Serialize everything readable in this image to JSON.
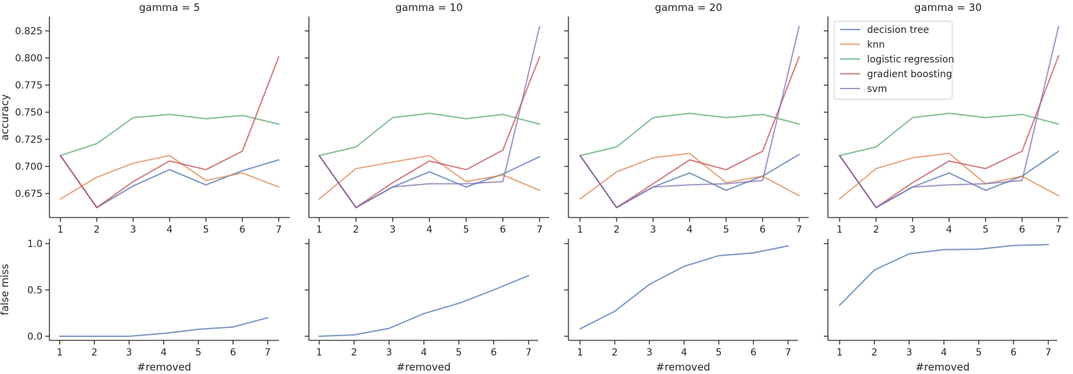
{
  "chart_data": {
    "type": "line",
    "layout": "facet-grid",
    "x": [
      1,
      2,
      3,
      4,
      5,
      6,
      7
    ],
    "xticks": [
      "1",
      "2",
      "3",
      "4",
      "5",
      "6",
      "7"
    ],
    "xlabel": "#removed",
    "colors": {
      "decision tree": "#4c72b0",
      "knn": "#dd8452",
      "logistic regression": "#55a868",
      "gradient boosting": "#c44e52",
      "svm": "#8172b3"
    },
    "legend": {
      "placement": "top-left of gamma = 30 panel",
      "entries": [
        "decision tree",
        "knn",
        "logistic regression",
        "gradient boosting",
        "svm"
      ]
    },
    "rows": [
      {
        "ylabel": "accuracy",
        "ylim": [
          0.653,
          0.838
        ],
        "yticks": [
          0.675,
          0.7,
          0.725,
          0.75,
          0.775,
          0.8,
          0.825
        ],
        "ytick_labels": [
          "0.675",
          "0.700",
          "0.725",
          "0.750",
          "0.775",
          "0.800",
          "0.825"
        ]
      },
      {
        "ylabel": "false miss",
        "ylim": [
          -0.05,
          1.03
        ],
        "yticks": [
          0,
          0.5,
          1
        ],
        "ytick_labels": [
          "0.0",
          "0.5",
          "1.0"
        ]
      }
    ],
    "panels": [
      {
        "title": "gamma = 5",
        "accuracy": [
          {
            "name": "decision tree",
            "values": [
              0.71,
              0.662,
              0.682,
              0.697,
              0.683,
              0.696,
              0.706
            ]
          },
          {
            "name": "knn",
            "values": [
              0.67,
              0.69,
              0.703,
              0.71,
              0.687,
              0.694,
              0.681
            ]
          },
          {
            "name": "logistic regression",
            "values": [
              0.71,
              0.721,
              0.745,
              0.748,
              0.744,
              0.747,
              0.739
            ]
          },
          {
            "name": "gradient boosting",
            "values": [
              0.71,
              0.662,
              0.686,
              0.705,
              0.697,
              0.714,
              0.801
            ]
          }
        ],
        "false_miss": [
          0.0,
          0.0,
          0.0,
          0.03,
          0.075,
          0.1,
          0.2
        ]
      },
      {
        "title": "gamma = 10",
        "accuracy": [
          {
            "name": "decision tree",
            "values": [
              0.71,
              0.662,
              0.681,
              0.695,
              0.681,
              0.693,
              0.709
            ]
          },
          {
            "name": "knn",
            "values": [
              0.67,
              0.698,
              0.704,
              0.71,
              0.686,
              0.692,
              0.678
            ]
          },
          {
            "name": "logistic regression",
            "values": [
              0.71,
              0.718,
              0.745,
              0.749,
              0.744,
              0.748,
              0.739
            ]
          },
          {
            "name": "gradient boosting",
            "values": [
              0.71,
              0.662,
              0.685,
              0.705,
              0.697,
              0.715,
              0.801
            ]
          },
          {
            "name": "svm",
            "values": [
              0.71,
              0.662,
              0.681,
              0.684,
              0.684,
              0.686,
              0.829
            ]
          }
        ],
        "false_miss": [
          0.0,
          0.015,
          0.085,
          0.245,
          0.355,
          0.5,
          0.655
        ]
      },
      {
        "title": "gamma = 20",
        "accuracy": [
          {
            "name": "decision tree",
            "values": [
              0.71,
              0.662,
              0.681,
              0.694,
              0.678,
              0.691,
              0.711
            ]
          },
          {
            "name": "knn",
            "values": [
              0.67,
              0.695,
              0.708,
              0.712,
              0.685,
              0.691,
              0.673
            ]
          },
          {
            "name": "logistic regression",
            "values": [
              0.71,
              0.718,
              0.745,
              0.749,
              0.745,
              0.748,
              0.739
            ]
          },
          {
            "name": "gradient boosting",
            "values": [
              0.71,
              0.662,
              0.684,
              0.706,
              0.697,
              0.714,
              0.801
            ]
          },
          {
            "name": "svm",
            "values": [
              0.71,
              0.662,
              0.681,
              0.683,
              0.684,
              0.687,
              0.829
            ]
          }
        ],
        "false_miss": [
          0.08,
          0.27,
          0.56,
          0.755,
          0.87,
          0.9,
          0.975
        ]
      },
      {
        "title": "gamma = 30",
        "accuracy": [
          {
            "name": "decision tree",
            "values": [
              0.71,
              0.662,
              0.681,
              0.694,
              0.678,
              0.691,
              0.714
            ]
          },
          {
            "name": "knn",
            "values": [
              0.67,
              0.698,
              0.708,
              0.712,
              0.684,
              0.691,
              0.673
            ]
          },
          {
            "name": "logistic regression",
            "values": [
              0.71,
              0.718,
              0.745,
              0.749,
              0.745,
              0.748,
              0.739
            ]
          },
          {
            "name": "gradient boosting",
            "values": [
              0.71,
              0.662,
              0.685,
              0.705,
              0.698,
              0.714,
              0.802
            ]
          },
          {
            "name": "svm",
            "values": [
              0.71,
              0.662,
              0.681,
              0.683,
              0.684,
              0.687,
              0.829
            ]
          }
        ],
        "false_miss": [
          0.335,
          0.715,
          0.89,
          0.935,
          0.94,
          0.98,
          0.99
        ]
      }
    ]
  }
}
